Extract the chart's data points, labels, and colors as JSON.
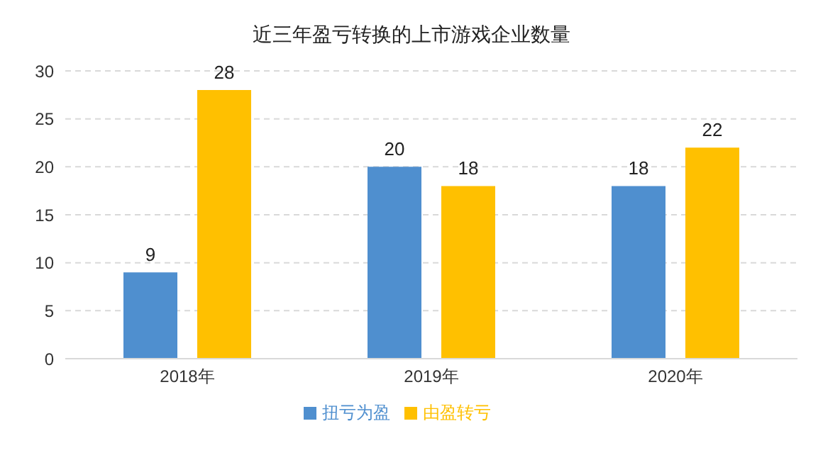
{
  "chart_data": {
    "type": "bar",
    "title": "近三年盈亏转换的上市游戏企业数量",
    "categories": [
      "2018年",
      "2019年",
      "2020年"
    ],
    "series": [
      {
        "name": "扭亏为盈",
        "color": "#4f8fcf",
        "values": [
          9,
          20,
          18
        ]
      },
      {
        "name": "由盈转亏",
        "color": "#ffc000",
        "values": [
          28,
          18,
          22
        ]
      }
    ],
    "ylim": [
      0,
      30
    ],
    "yticks": [
      0,
      5,
      10,
      15,
      20,
      25,
      30
    ],
    "grid": "y",
    "legend": "bottom",
    "data_labels": true
  }
}
